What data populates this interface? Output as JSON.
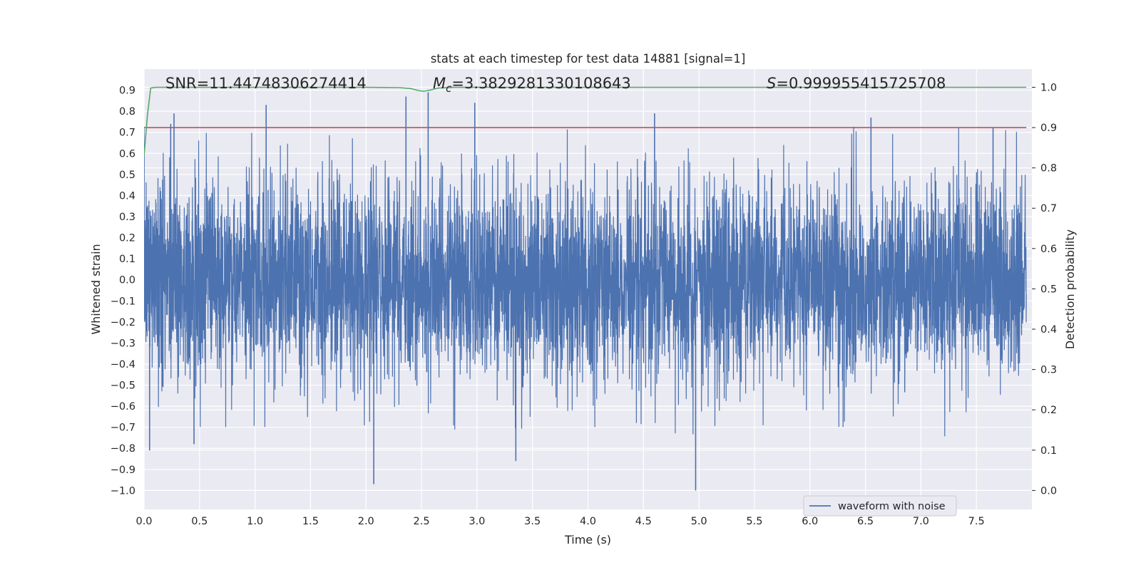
{
  "chart_data": {
    "type": "line",
    "title": "stats at each timestep for test data 14881 [signal=1]",
    "xlabel": "Time (s)",
    "ylabel": "Whitened strain",
    "y2label": "Detection probability",
    "xlim": [
      0.0,
      8.0
    ],
    "ylim": [
      -1.09,
      1.0
    ],
    "y2lim": [
      -0.047,
      1.045
    ],
    "x_ticks": [
      "0.0",
      "0.5",
      "1.0",
      "1.5",
      "2.0",
      "2.5",
      "3.0",
      "3.5",
      "4.0",
      "4.5",
      "5.0",
      "5.5",
      "6.0",
      "6.5",
      "7.0",
      "7.5"
    ],
    "y_ticks": [
      "0.9",
      "0.8",
      "0.7",
      "0.6",
      "0.5",
      "0.4",
      "0.3",
      "0.2",
      "0.1",
      "0.0",
      "−0.1",
      "−0.2",
      "−0.3",
      "−0.4",
      "−0.5",
      "−0.6",
      "−0.7",
      "−0.8",
      "−0.9",
      "−1.0"
    ],
    "y2_ticks": [
      "1.0",
      "0.9",
      "0.8",
      "0.7",
      "0.6",
      "0.5",
      "0.4",
      "0.3",
      "0.2",
      "0.1",
      "0.0"
    ],
    "grid": true,
    "legend_position": "lower right",
    "series": [
      {
        "name": "waveform with noise",
        "axis": "left",
        "kind": "dense noise trace",
        "x_range": [
          0.0,
          8.0
        ],
        "x": [
          0.0,
          0.05,
          0.24,
          0.27,
          0.45,
          1.1,
          2.07,
          2.36,
          2.56,
          2.98,
          3.35,
          4.6,
          4.97,
          6.55,
          7.65
        ],
        "y": [
          0.6,
          -0.81,
          0.74,
          0.79,
          -0.78,
          0.83,
          -0.97,
          0.87,
          0.89,
          0.84,
          -0.86,
          0.79,
          -1.0,
          0.77,
          0.72
        ],
        "typical_envelope": [
          -0.6,
          0.6
        ],
        "color": "#4c72b0"
      },
      {
        "name": "",
        "axis": "right",
        "kind": "detection probability",
        "x": [
          0.0,
          0.03,
          0.06,
          0.1,
          0.3,
          1.0,
          2.0,
          2.3,
          2.4,
          2.47,
          2.52,
          2.58,
          2.65,
          2.8,
          4.0,
          6.0,
          7.95
        ],
        "y": [
          0.83,
          0.93,
          0.998,
          1.0,
          1.0,
          1.0,
          1.0,
          0.999,
          0.997,
          0.992,
          0.99,
          0.993,
          0.998,
          1.0,
          1.0,
          1.0,
          1.0
        ],
        "color": "#55a868"
      },
      {
        "name": "",
        "axis": "right",
        "kind": "threshold",
        "x": [
          0.0,
          7.95
        ],
        "y": [
          0.9,
          0.9
        ],
        "color": "#c44e52"
      }
    ],
    "annotations": [
      {
        "name": "snr",
        "text": "SNR=11.44748306274414"
      },
      {
        "name": "mc",
        "text_prefix": "M",
        "subscript": "c",
        "text_suffix": "=3.3829281330108643"
      },
      {
        "name": "s",
        "text_prefix": "S",
        "text_suffix": "=0.999955415725708"
      }
    ],
    "colors": {
      "axes_bg": "#eaeaf2",
      "grid": "#ffffff",
      "waveform": "#4c72b0",
      "probability": "#55a868",
      "threshold": "#c44e52"
    }
  }
}
